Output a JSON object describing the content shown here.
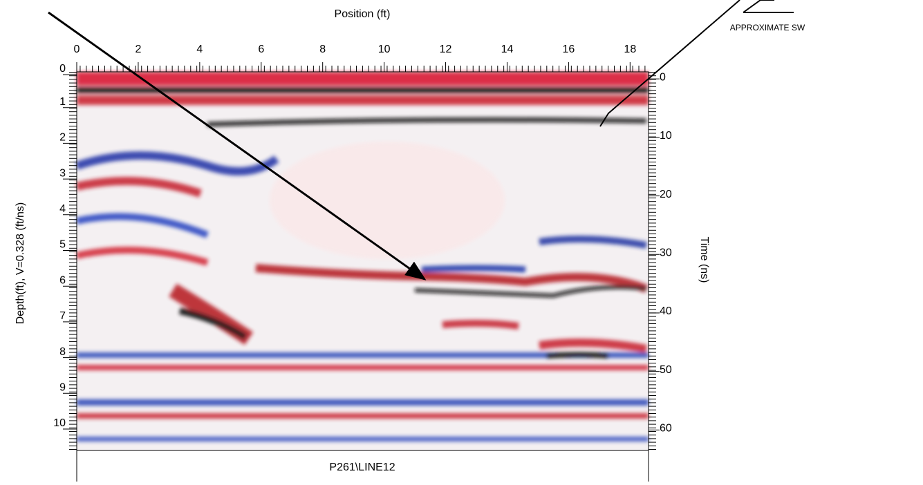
{
  "chart_data": {
    "type": "radargram",
    "x_label": "Position (ft)",
    "y_label": "Depth(ft), V=0.328 (ft/ns)",
    "y2_label": "Time (ns)",
    "caption": "P261\\LINE12",
    "annotation": "APPROXIMATE SW",
    "xlim": [
      0,
      18.6
    ],
    "xticks": [
      0,
      2,
      4,
      6,
      8,
      10,
      12,
      14,
      16,
      18
    ],
    "ylim": [
      0,
      10.6
    ],
    "yticks": [
      0,
      1,
      2,
      3,
      4,
      5,
      6,
      7,
      8,
      9,
      10
    ],
    "y2lim": [
      -1.2,
      63.5
    ],
    "y2ticks": [
      0,
      10,
      20,
      30,
      40,
      50,
      60
    ]
  }
}
